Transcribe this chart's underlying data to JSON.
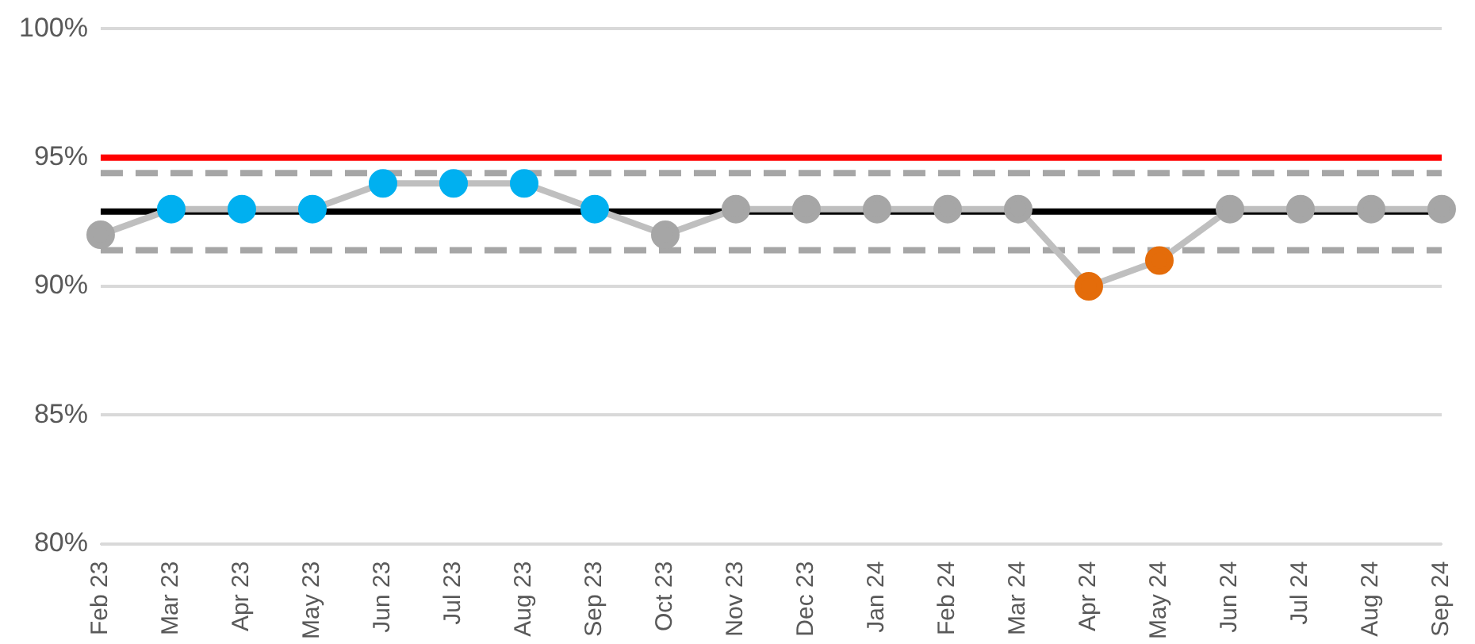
{
  "chart_data": {
    "type": "line",
    "categories": [
      "Feb 23",
      "Mar 23",
      "Apr 23",
      "May 23",
      "Jun 23",
      "Jul 23",
      "Aug 23",
      "Sep 23",
      "Oct 23",
      "Nov 23",
      "Dec 23",
      "Jan 24",
      "Feb 24",
      "Mar 24",
      "Apr 24",
      "May 24",
      "Jun 24",
      "Jul 24",
      "Aug 24",
      "Sep 24"
    ],
    "series": [
      {
        "color": "#bfbfbf",
        "values": [
          92,
          93,
          93,
          93,
          94,
          94,
          94,
          93,
          92,
          93,
          93,
          93,
          93,
          93,
          90,
          91,
          93,
          93,
          93,
          93
        ],
        "colors": [
          "#a6a6a6",
          "#00b0f0",
          "#00b0f0",
          "#00b0f0",
          "#00b0f0",
          "#00b0f0",
          "#00b0f0",
          "#00b0f0",
          "#a6a6a6",
          "#a6a6a6",
          "#a6a6a6",
          "#a6a6a6",
          "#a6a6a6",
          "#a6a6a6",
          "#e46c0a",
          "#e46c0a",
          "#a6a6a6",
          "#a6a6a6",
          "#a6a6a6",
          "#a6a6a6"
        ]
      }
    ],
    "ylim": [
      80,
      100
    ],
    "yticks": [
      {
        "value": 80,
        "label": "80%"
      },
      {
        "value": 85,
        "label": "85%"
      },
      {
        "value": 90,
        "label": "90%"
      },
      {
        "value": 95,
        "label": "95%"
      },
      {
        "value": 100,
        "label": "100%"
      }
    ],
    "grid": "y",
    "legend": false,
    "marker": "circle",
    "line_style": "solid",
    "ref_lines": [
      {
        "axis": "y",
        "value": 95,
        "color": "#ff0000",
        "line_style": "solid"
      },
      {
        "axis": "y",
        "value": 92.9,
        "color": "#000000",
        "line_style": "solid"
      },
      {
        "axis": "y",
        "value": 94.4,
        "color": "#a6a6a6",
        "line_style": "dashed"
      },
      {
        "axis": "y",
        "value": 91.4,
        "color": "#a6a6a6",
        "line_style": "dashed"
      }
    ]
  }
}
